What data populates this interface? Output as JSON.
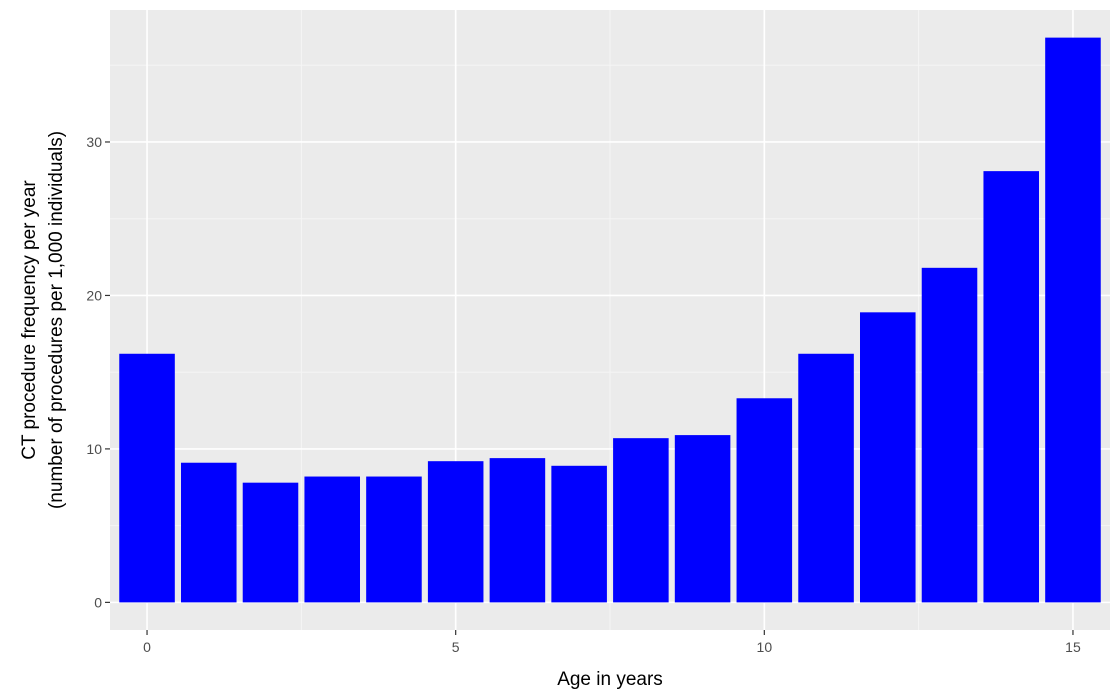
{
  "chart_data": {
    "type": "bar",
    "title": "",
    "xlabel": "Age in years",
    "ylabel": "CT procedure frequency per year",
    "ylabel_line2": "(number of procedures per 1,000 individuals)",
    "x": [
      0,
      1,
      2,
      3,
      4,
      5,
      6,
      7,
      8,
      9,
      10,
      11,
      12,
      13,
      14,
      15
    ],
    "values": [
      16.2,
      9.1,
      7.8,
      8.2,
      8.2,
      9.2,
      9.4,
      8.9,
      10.7,
      10.9,
      13.3,
      16.2,
      18.9,
      21.8,
      28.1,
      36.8
    ],
    "xlim": [
      -0.6,
      15.6
    ],
    "ylim": [
      -1.8,
      38.6
    ],
    "x_ticks": [
      0,
      5,
      10,
      15
    ],
    "x_tick_labels": [
      "0",
      "5",
      "10",
      "15"
    ],
    "y_ticks": [
      0,
      10,
      20,
      30
    ],
    "y_tick_labels": [
      "0",
      "10",
      "20",
      "30"
    ],
    "grid": true,
    "legend": "none",
    "colors": {
      "bar": "#0000ff",
      "panel_background": "#ebebeb",
      "grid_major": "#ffffff",
      "grid_minor": "#f5f5f5"
    }
  }
}
